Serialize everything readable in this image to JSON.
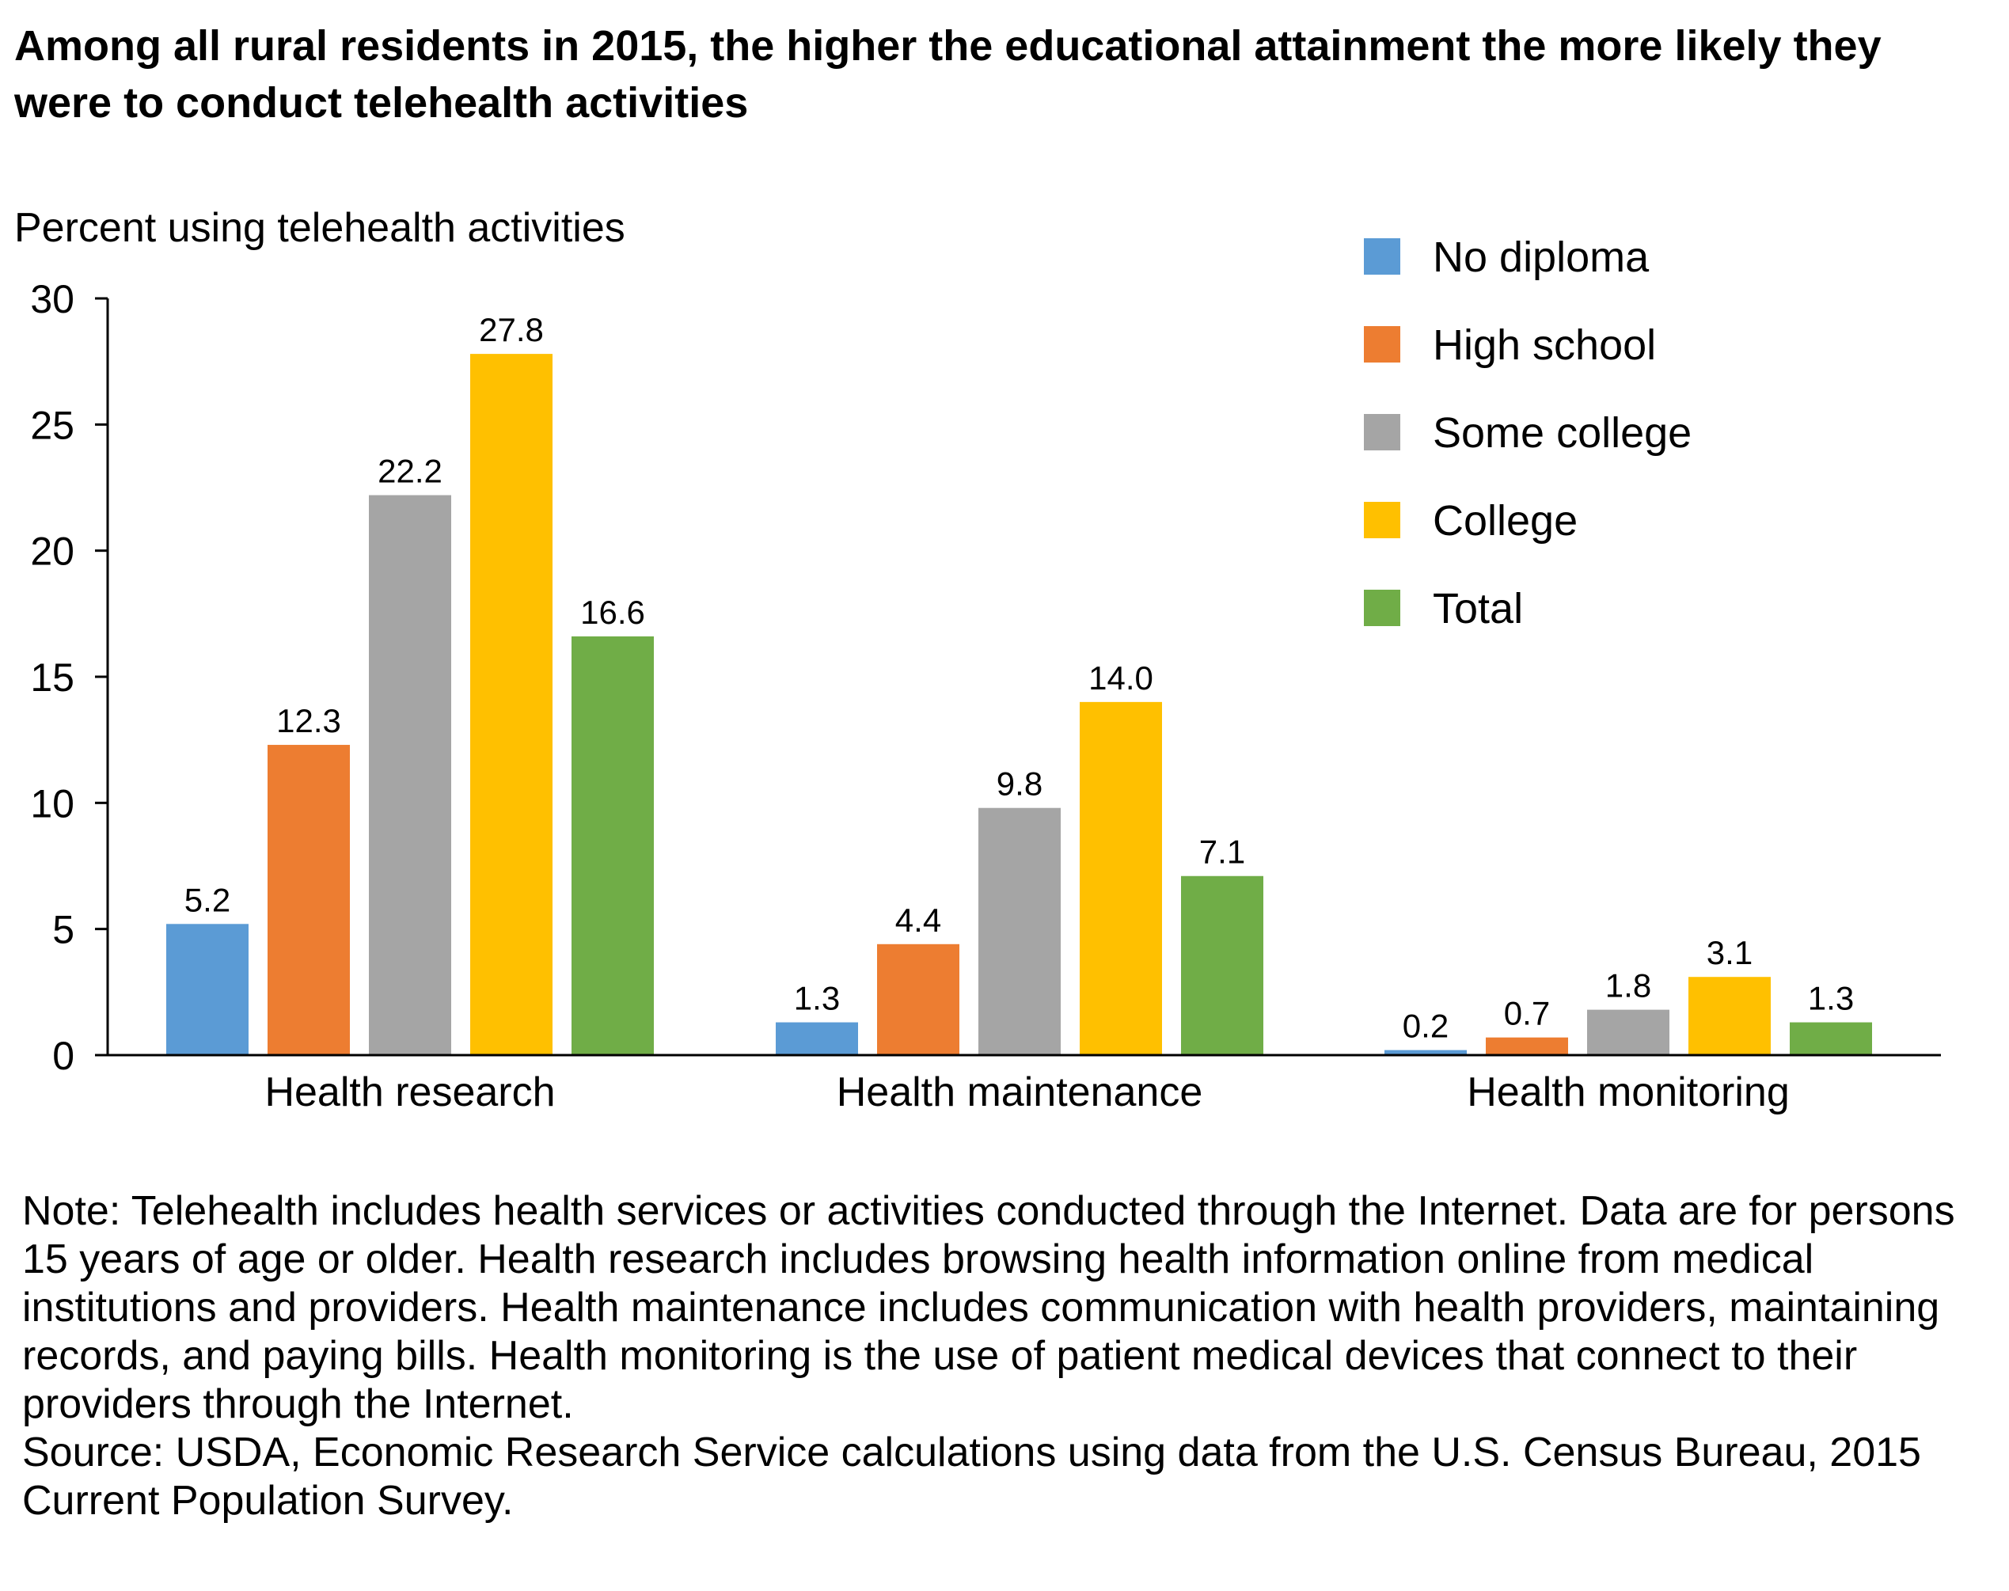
{
  "chart_data": {
    "type": "bar",
    "title": "Among all rural residents in 2015, the higher the educational attainment the more likely they were to conduct telehealth activities",
    "ylabel": "Percent using telehealth activities",
    "xlabel": "",
    "ylim": [
      0,
      30
    ],
    "yticks": [
      0,
      5,
      10,
      15,
      20,
      25,
      30
    ],
    "categories": [
      "Health research",
      "Health maintenance",
      "Health monitoring"
    ],
    "series": [
      {
        "name": "No diploma",
        "color": "#5b9bd5",
        "values": [
          5.2,
          1.3,
          0.2
        ],
        "labels": [
          "5.2",
          "1.3",
          "0.2"
        ]
      },
      {
        "name": "High school",
        "color": "#ed7d31",
        "values": [
          12.3,
          4.4,
          0.7
        ],
        "labels": [
          "12.3",
          "4.4",
          "0.7"
        ]
      },
      {
        "name": "Some college",
        "color": "#a5a5a5",
        "values": [
          22.2,
          9.8,
          1.8
        ],
        "labels": [
          "22.2",
          "9.8",
          "1.8"
        ]
      },
      {
        "name": "College",
        "color": "#ffc000",
        "values": [
          27.8,
          14.0,
          3.1
        ],
        "labels": [
          "27.8",
          "14.0",
          "3.1"
        ]
      },
      {
        "name": "Total",
        "color": "#70ad47",
        "values": [
          16.6,
          7.1,
          1.3
        ],
        "labels": [
          "16.6",
          "7.1",
          "1.3"
        ]
      }
    ],
    "legend_position": "top-right",
    "grid": false
  },
  "note": "Note: Telehealth includes health services or activities conducted through the Internet. Data are for persons 15 years of age or older. Health research includes browsing health information online from medical institutions and providers. Health maintenance includes communication with health providers, maintaining records, and paying bills. Health monitoring is the use of patient medical devices that connect to their providers through the Internet.",
  "source": "Source: USDA, Economic Research Service calculations using data from the U.S. Census Bureau, 2015 Current Population Survey."
}
